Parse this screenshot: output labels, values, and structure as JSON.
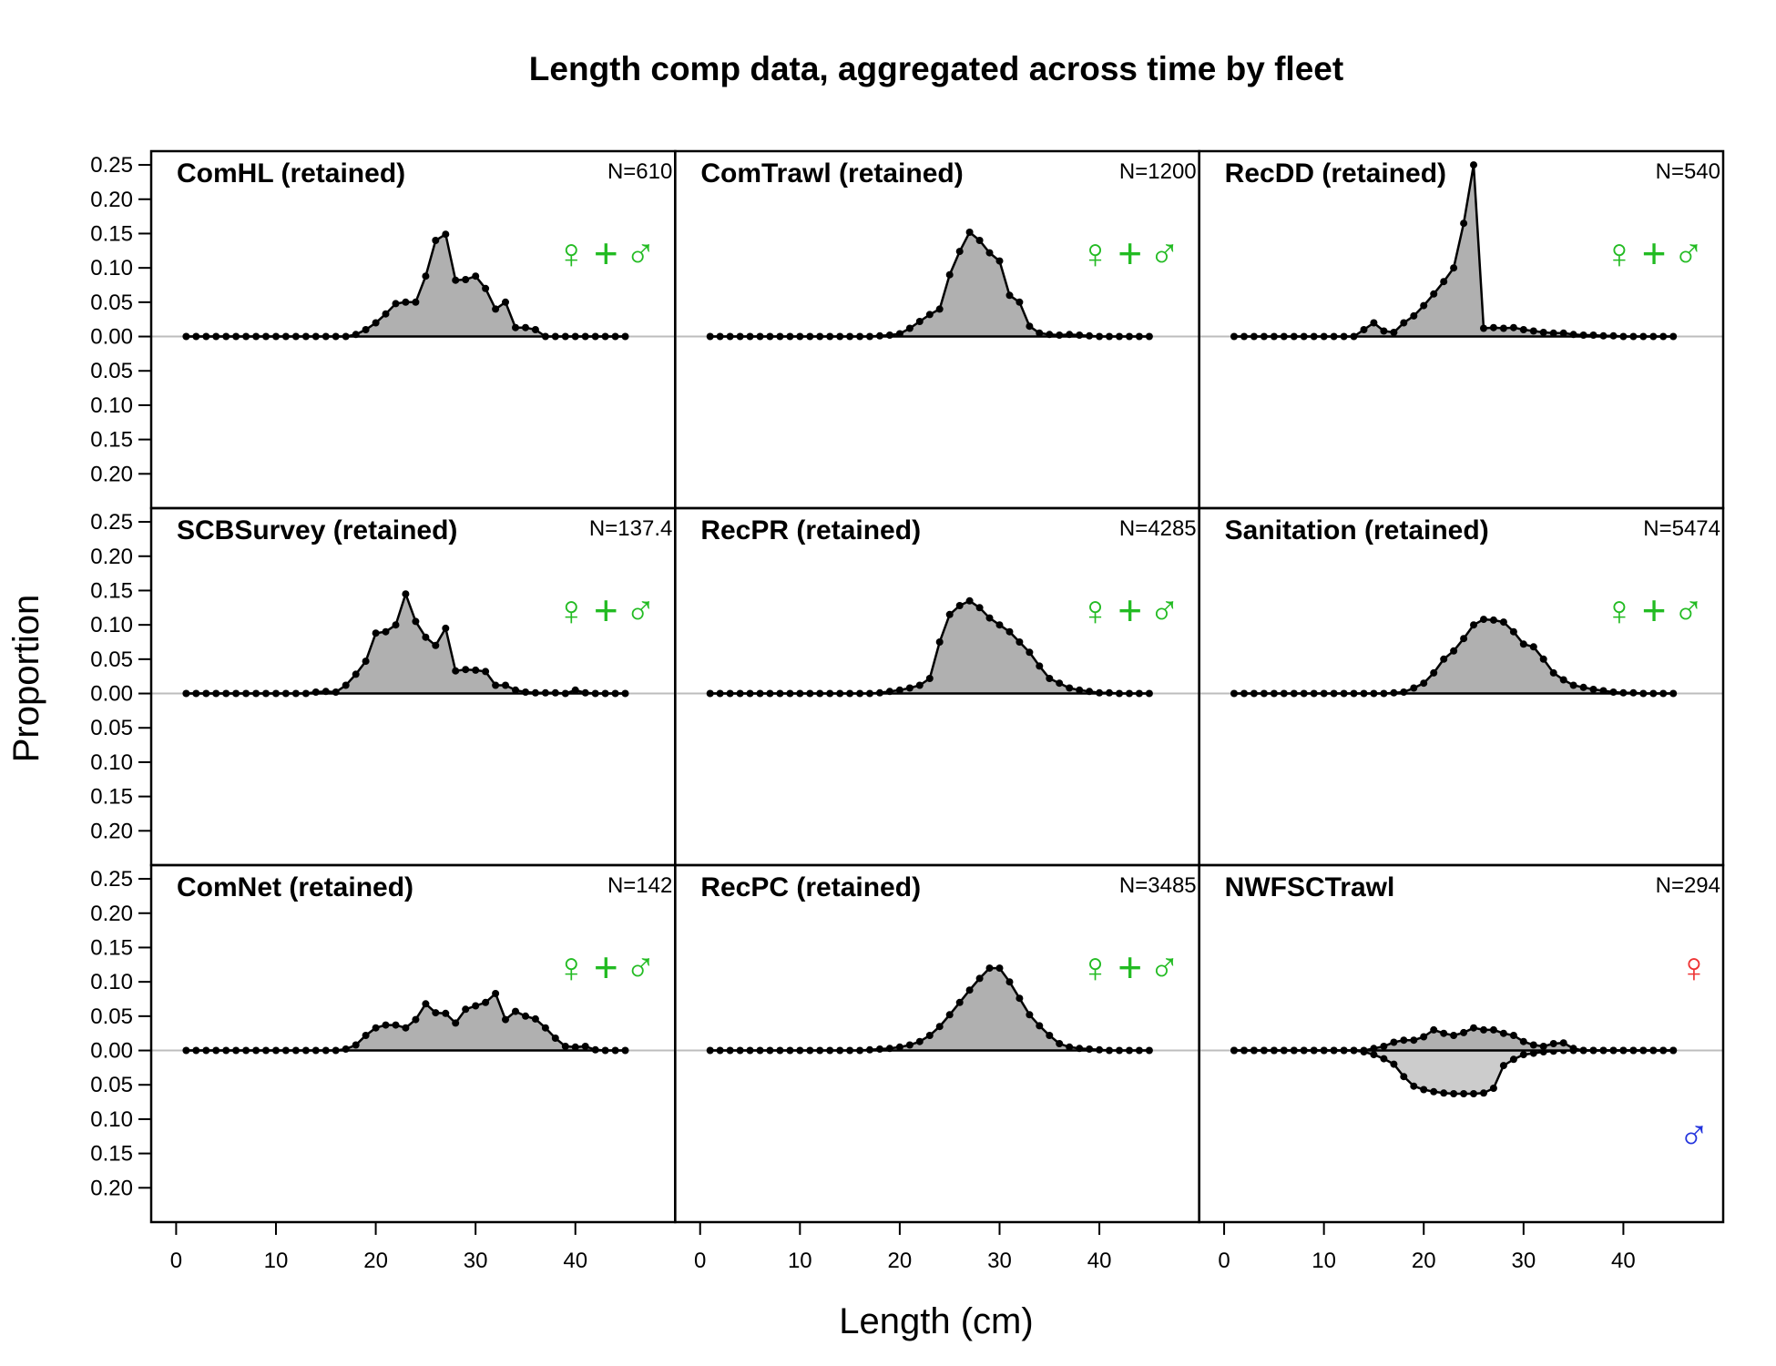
{
  "chart_data": {
    "type": "area",
    "title": "Length comp data, aggregated across time by fleet",
    "xlabel": "Length (cm)",
    "ylabel": "Proportion",
    "xlim": [
      -2.5,
      50
    ],
    "ylim": [
      -0.25,
      0.27
    ],
    "x_ticks": [
      0,
      10,
      20,
      30,
      40
    ],
    "y_ticks": [
      0.25,
      0.2,
      0.15,
      0.1,
      0.05,
      0,
      -0.05,
      -0.1,
      -0.15,
      -0.2
    ],
    "y_tick_labels": [
      "0.25",
      "0.20",
      "0.15",
      "0.10",
      "0.05",
      "0.00",
      "0.05",
      "0.10",
      "0.15",
      "0.20"
    ],
    "x_tick_labels": [
      "0",
      "10",
      "20",
      "30",
      "40"
    ],
    "grid": false,
    "colors": {
      "combined_symbol": "#22bb22",
      "female_symbol": "#ee3333",
      "male_symbol": "#2233dd",
      "fill_female": "#b0b0b0",
      "fill_male": "#cccccc",
      "zero_line": "#bdbdbd"
    },
    "x": [
      1,
      2,
      3,
      4,
      5,
      6,
      7,
      8,
      9,
      10,
      11,
      12,
      13,
      14,
      15,
      16,
      17,
      18,
      19,
      20,
      21,
      22,
      23,
      24,
      25,
      26,
      27,
      28,
      29,
      30,
      31,
      32,
      33,
      34,
      35,
      36,
      37,
      38,
      39,
      40,
      41,
      42,
      43,
      44,
      45
    ],
    "panels": [
      {
        "label": "ComHL (retained)",
        "n": "N=610",
        "sex": "combined",
        "female": [
          0,
          0,
          0,
          0,
          0,
          0,
          0,
          0,
          0,
          0,
          0,
          0,
          0,
          0,
          0,
          0,
          0,
          0.003,
          0.01,
          0.02,
          0.033,
          0.048,
          0.05,
          0.05,
          0.088,
          0.14,
          0.149,
          0.082,
          0.083,
          0.088,
          0.07,
          0.04,
          0.05,
          0.013,
          0.013,
          0.01,
          0,
          0,
          0,
          0,
          0,
          0,
          0,
          0,
          0
        ]
      },
      {
        "label": "ComTrawl (retained)",
        "n": "N=1200",
        "sex": "combined",
        "female": [
          0,
          0,
          0,
          0,
          0,
          0,
          0,
          0,
          0,
          0,
          0,
          0,
          0,
          0,
          0,
          0,
          0,
          0.001,
          0.002,
          0.004,
          0.012,
          0.022,
          0.032,
          0.04,
          0.09,
          0.124,
          0.152,
          0.14,
          0.122,
          0.11,
          0.06,
          0.05,
          0.015,
          0.005,
          0.003,
          0.002,
          0.003,
          0.002,
          0.001,
          0,
          0,
          0,
          0,
          0,
          0
        ]
      },
      {
        "label": "RecDD (retained)",
        "n": "N=540",
        "sex": "combined",
        "female": [
          0,
          0,
          0,
          0,
          0,
          0,
          0,
          0,
          0,
          0,
          0,
          0,
          0,
          0.01,
          0.02,
          0.008,
          0.006,
          0.02,
          0.03,
          0.045,
          0.062,
          0.08,
          0.1,
          0.165,
          0.25,
          0.012,
          0.013,
          0.012,
          0.013,
          0.01,
          0.008,
          0.006,
          0.005,
          0.005,
          0.003,
          0.002,
          0.002,
          0.001,
          0.001,
          0,
          0,
          0,
          0,
          0,
          0
        ]
      },
      {
        "label": "SCBSurvey (retained)",
        "n": "N=137.4",
        "sex": "combined",
        "female": [
          0,
          0,
          0,
          0,
          0,
          0,
          0,
          0,
          0,
          0,
          0,
          0,
          0,
          0.002,
          0.003,
          0.002,
          0.012,
          0.028,
          0.047,
          0.088,
          0.09,
          0.1,
          0.145,
          0.105,
          0.082,
          0.07,
          0.095,
          0.033,
          0.035,
          0.034,
          0.032,
          0.012,
          0.012,
          0.005,
          0.002,
          0.001,
          0.001,
          0.001,
          0,
          0.005,
          0.001,
          0,
          0,
          0,
          0
        ]
      },
      {
        "label": "RecPR (retained)",
        "n": "N=4285",
        "sex": "combined",
        "female": [
          0,
          0,
          0,
          0,
          0,
          0,
          0,
          0,
          0,
          0,
          0,
          0,
          0,
          0,
          0,
          0,
          0,
          0.001,
          0.003,
          0.005,
          0.008,
          0.012,
          0.022,
          0.075,
          0.115,
          0.128,
          0.135,
          0.125,
          0.11,
          0.1,
          0.09,
          0.075,
          0.06,
          0.04,
          0.022,
          0.015,
          0.008,
          0.005,
          0.003,
          0.001,
          0.001,
          0,
          0,
          0,
          0
        ]
      },
      {
        "label": "Sanitation (retained)",
        "n": "N=5474",
        "sex": "combined",
        "female": [
          0,
          0,
          0,
          0,
          0,
          0,
          0,
          0,
          0,
          0,
          0,
          0,
          0,
          0,
          0,
          0,
          0.001,
          0.002,
          0.008,
          0.015,
          0.03,
          0.05,
          0.062,
          0.08,
          0.1,
          0.108,
          0.107,
          0.104,
          0.09,
          0.072,
          0.068,
          0.05,
          0.03,
          0.02,
          0.012,
          0.009,
          0.006,
          0.004,
          0.002,
          0.001,
          0.001,
          0,
          0,
          0,
          0
        ]
      },
      {
        "label": "ComNet (retained)",
        "n": "N=142",
        "sex": "combined",
        "female": [
          0,
          0,
          0,
          0,
          0,
          0,
          0,
          0,
          0,
          0,
          0,
          0,
          0,
          0,
          0,
          0,
          0.002,
          0.008,
          0.022,
          0.033,
          0.037,
          0.037,
          0.033,
          0.045,
          0.068,
          0.055,
          0.054,
          0.04,
          0.06,
          0.065,
          0.07,
          0.083,
          0.045,
          0.057,
          0.05,
          0.046,
          0.033,
          0.018,
          0.006,
          0.005,
          0.006,
          0.001,
          0,
          0,
          0
        ]
      },
      {
        "label": "RecPC (retained)",
        "n": "N=3485",
        "sex": "combined",
        "female": [
          0,
          0,
          0,
          0,
          0,
          0,
          0,
          0,
          0,
          0,
          0,
          0,
          0,
          0,
          0,
          0,
          0.001,
          0.002,
          0.003,
          0.005,
          0.008,
          0.013,
          0.022,
          0.035,
          0.052,
          0.07,
          0.088,
          0.105,
          0.12,
          0.12,
          0.1,
          0.076,
          0.052,
          0.036,
          0.022,
          0.01,
          0.005,
          0.003,
          0.002,
          0.001,
          0,
          0,
          0,
          0,
          0
        ]
      },
      {
        "label": "NWFSCTrawl",
        "n": "N=294",
        "sex": "split",
        "female": [
          0,
          0,
          0,
          0,
          0,
          0,
          0,
          0,
          0,
          0,
          0,
          0,
          0,
          0,
          0.003,
          0.006,
          0.012,
          0.015,
          0.015,
          0.02,
          0.03,
          0.025,
          0.022,
          0.026,
          0.033,
          0.03,
          0.03,
          0.025,
          0.022,
          0.013,
          0.008,
          0.006,
          0.01,
          0.011,
          0.003,
          0,
          0,
          0,
          0,
          0,
          0,
          0,
          0,
          0,
          0
        ],
        "male": [
          0,
          0,
          0,
          0,
          0,
          0,
          0,
          0,
          0,
          0,
          0,
          0,
          0,
          0.002,
          0.006,
          0.012,
          0.02,
          0.038,
          0.052,
          0.057,
          0.06,
          0.062,
          0.063,
          0.063,
          0.063,
          0.062,
          0.055,
          0.022,
          0.013,
          0.006,
          0.004,
          0.002,
          0.001,
          0,
          0,
          0,
          0,
          0,
          0,
          0,
          0,
          0,
          0,
          0,
          0
        ]
      }
    ]
  },
  "symbols": {
    "female": "♀",
    "male": "♂",
    "plus": "+"
  }
}
